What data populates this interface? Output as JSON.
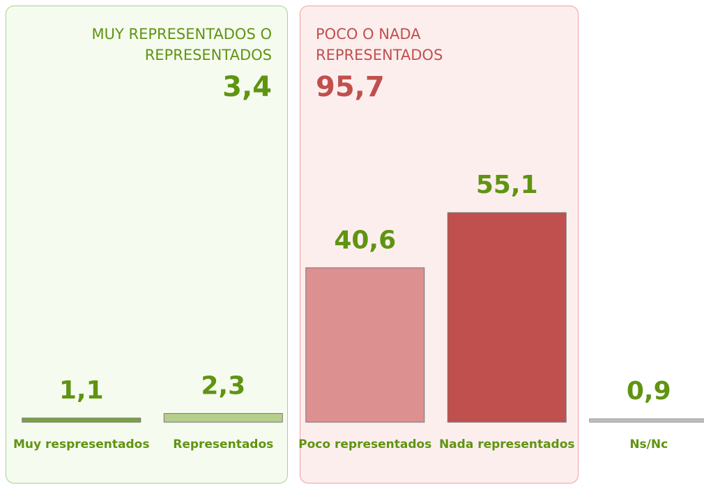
{
  "chart_data": {
    "type": "bar",
    "categories": [
      "Muy respresentados",
      "Representados",
      "Poco representados",
      "Nada representados",
      "Ns/Nc"
    ],
    "values": [
      1.1,
      2.3,
      40.6,
      55.1,
      0.9
    ],
    "value_labels": [
      "1,1",
      "2,3",
      "40,6",
      "55,1",
      "0,9"
    ],
    "colors": [
      "#77a33d",
      "#b5cf8a",
      "#dc9090",
      "#c0504d",
      "#bfbfbf"
    ],
    "label_color": "#5f9410",
    "ylim": [
      0,
      100
    ],
    "groups": [
      {
        "label": "MUY REPRESENTADOS O REPRESENTADOS",
        "value": 3.4,
        "value_label": "3,4",
        "color": "#5f9410"
      },
      {
        "label": "POCO O NADA REPRESENTADOS",
        "value": 95.7,
        "value_label": "95,7",
        "color": "#c0504d"
      }
    ]
  }
}
